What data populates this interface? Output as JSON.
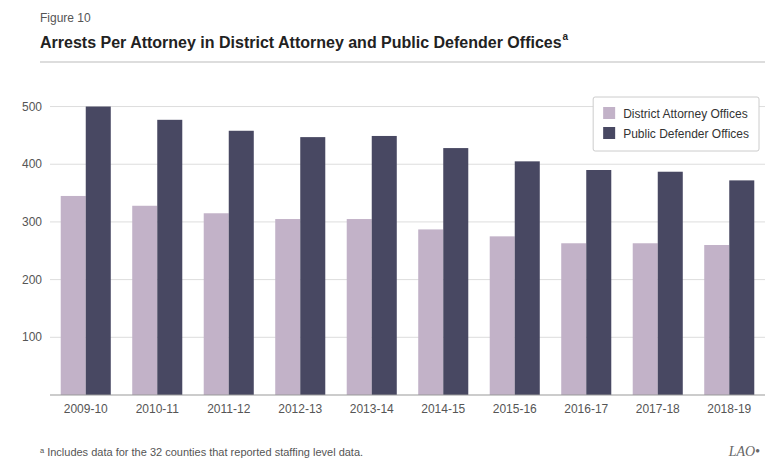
{
  "chart_data": {
    "type": "bar",
    "title": "Arrests Per Attorney in District Attorney and Public Defender Offices",
    "annotations": [
      "Figure 10",
      "a",
      "ᵃ Includes data for the 32 counties that reported staffing level data.",
      "LAO•"
    ],
    "categories": [
      "2009-10",
      "2010-11",
      "2011-12",
      "2012-13",
      "2013-14",
      "2014-15",
      "2015-16",
      "2016-17",
      "2017-18",
      "2018-19"
    ],
    "series": [
      {
        "name": "District Attorney Offices",
        "color": "#c2b2c8",
        "values": [
          345,
          328,
          315,
          305,
          305,
          287,
          275,
          263,
          263,
          260
        ]
      },
      {
        "name": "Public Defender Offices",
        "color": "#484862",
        "values": [
          500,
          477,
          458,
          447,
          449,
          428,
          405,
          390,
          387,
          372
        ]
      }
    ],
    "ylim": [
      0,
      520
    ],
    "yticks": [
      100,
      200,
      300,
      400,
      500
    ],
    "grid": true,
    "legend": "upper right"
  }
}
